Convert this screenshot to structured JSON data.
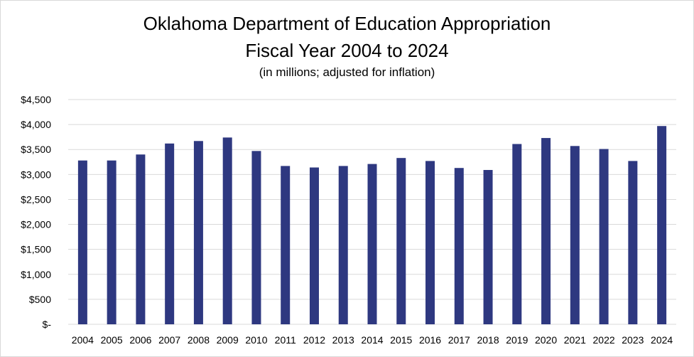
{
  "chart_data": {
    "type": "bar",
    "title": "Oklahoma Department of Education Appropriation",
    "subtitle": "Fiscal Year 2004 to 2024",
    "note": "(in millions; adjusted for inflation)",
    "xlabel": "",
    "ylabel": "",
    "categories": [
      "2004",
      "2005",
      "2006",
      "2007",
      "2008",
      "2009",
      "2010",
      "2011",
      "2012",
      "2013",
      "2014",
      "2015",
      "2016",
      "2017",
      "2018",
      "2019",
      "2020",
      "2021",
      "2022",
      "2023",
      "2024"
    ],
    "values": [
      3280,
      3280,
      3400,
      3620,
      3670,
      3740,
      3470,
      3170,
      3140,
      3170,
      3210,
      3330,
      3270,
      3130,
      3090,
      3610,
      3730,
      3570,
      3510,
      3270,
      3970
    ],
    "ylim": [
      0,
      4500
    ],
    "y_ticks": [
      0,
      500,
      1000,
      1500,
      2000,
      2500,
      3000,
      3500,
      4000,
      4500
    ],
    "y_tick_labels": [
      "$-",
      "$500",
      "$1,000",
      "$1,500",
      "$2,000",
      "$2,500",
      "$3,000",
      "$3,500",
      "$4,000",
      "$4,500"
    ],
    "grid": true,
    "legend": "none",
    "bar_color": "#2e3880",
    "grid_color": "#d9d9d9"
  }
}
